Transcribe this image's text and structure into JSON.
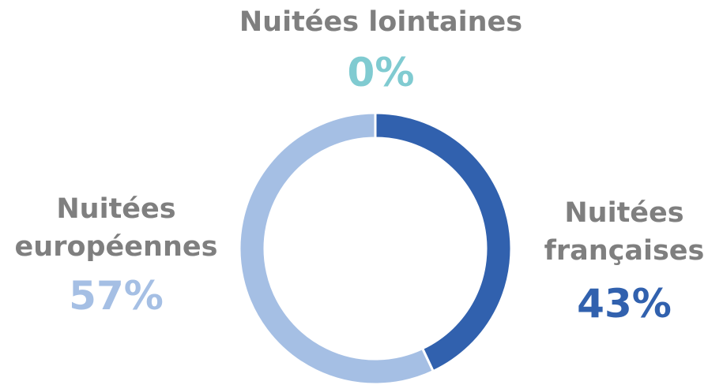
{
  "chart_data": {
    "type": "donut",
    "categories": [
      "Nuitées françaises",
      "Nuitées européennes",
      "Nuitées lointaines"
    ],
    "values": [
      43,
      57,
      0
    ],
    "value_labels": [
      "43%",
      "57%",
      "0%"
    ],
    "colors": [
      "#3161ae",
      "#a5bfe4",
      "#80cbd1"
    ]
  }
}
